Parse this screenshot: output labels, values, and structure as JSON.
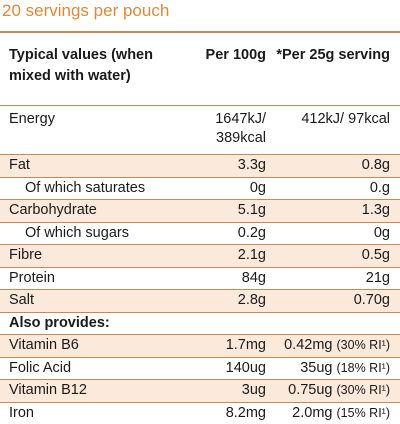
{
  "servings_text": "20 servings per pouch",
  "header": {
    "col1": "Typical values (when mixed with water)",
    "col2": "Per 100g",
    "col3": "*Per 25g serving"
  },
  "rows": [
    {
      "label": "Energy",
      "per100": "1647kJ/ 389kcal",
      "serving": "412kJ/ 97kcal"
    },
    {
      "label": "Fat",
      "per100": "3.3g",
      "serving": "0.8g"
    },
    {
      "label": "Of which saturates",
      "per100": "0g",
      "serving": "0.g"
    },
    {
      "label": "Carbohydrate",
      "per100": "5.1g",
      "serving": "1.3g"
    },
    {
      "label": "Of which sugars",
      "per100": "0.2g",
      "serving": "0g"
    },
    {
      "label": "Fibre",
      "per100": "2.1g",
      "serving": "0.5g"
    },
    {
      "label": "Protein",
      "per100": "84g",
      "serving": "21g"
    },
    {
      "label": "Salt",
      "per100": "2.8g",
      "serving": "0.70g"
    }
  ],
  "also_provides": "Also provides:",
  "vitamins": [
    {
      "label": "Vitamin B6",
      "per100": "1.7mg",
      "serving": "0.42mg",
      "ri": "(30% RI¹)"
    },
    {
      "label": "Folic Acid",
      "per100": "140ug",
      "serving": "35ug",
      "ri": "(18% RI¹)"
    },
    {
      "label": "Vitamin B12",
      "per100": "3ug",
      "serving": "0.75ug",
      "ri": "(30% RI¹)"
    },
    {
      "label": "Iron",
      "per100": "8.2mg",
      "serving": "2.0mg",
      "ri": "(15% RI¹)"
    }
  ],
  "colors": {
    "accent": "#d98a3c",
    "border": "#c58a54",
    "shade": "#fbeadc"
  }
}
